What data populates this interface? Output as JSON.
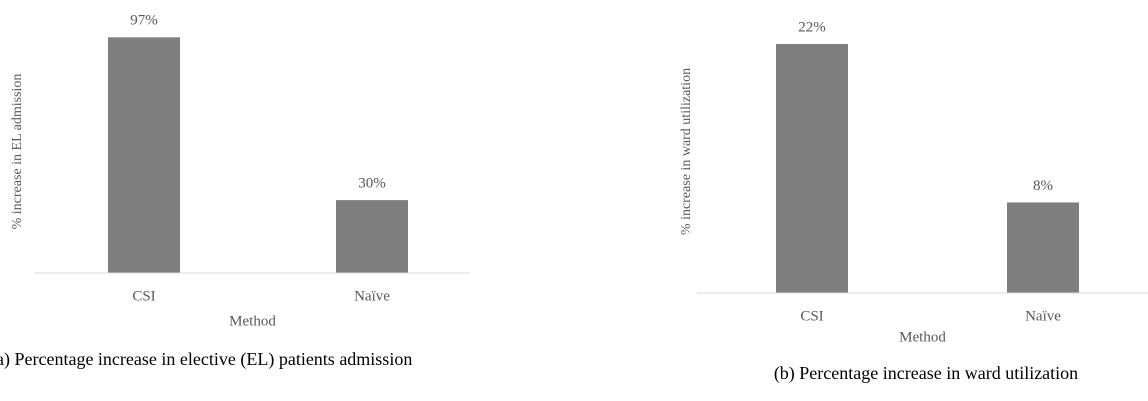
{
  "chart_data": [
    {
      "type": "bar",
      "categories": [
        "CSI",
        "Naïve"
      ],
      "values": [
        97,
        30
      ],
      "value_labels": [
        "97%",
        "30%"
      ],
      "color": "#7f7f7f",
      "ylim": [
        0,
        100
      ],
      "x_label": "Method",
      "y_label": "% increase in EL admission",
      "caption": "(a) Percentage increase in elective (EL) patients admission"
    },
    {
      "type": "bar",
      "categories": [
        "CSI",
        "Naïve"
      ],
      "values": [
        22,
        8
      ],
      "value_labels": [
        "22%",
        "8%"
      ],
      "color": "#7f7f7f",
      "ylim": [
        0,
        25
      ],
      "x_label": "Method",
      "y_label": "% increase in ward utilization",
      "caption": "(b) Percentage increase in ward utilization"
    }
  ]
}
